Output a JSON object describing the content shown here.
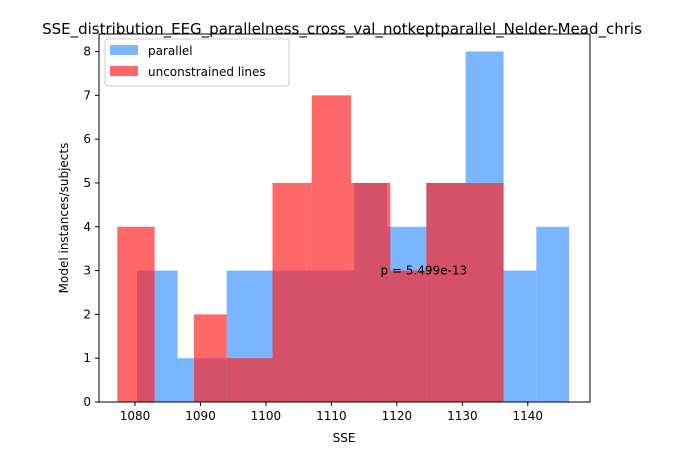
{
  "chart_data": {
    "type": "bar",
    "title": "SSE_distribution_EEG_parallelness_cross_val_notkeptparallel_Nelder-Mead_chris",
    "xlabel": "SSE",
    "ylabel": "Model instances/subjects",
    "xlim": [
      1074.5,
      1149.5
    ],
    "ylim": [
      0,
      8.4
    ],
    "xticks": [
      1080,
      1090,
      1100,
      1110,
      1120,
      1130,
      1140
    ],
    "yticks": [
      0,
      1,
      2,
      3,
      4,
      5,
      6,
      7,
      8
    ],
    "grid": false,
    "legend_position": "top-left",
    "annotation": {
      "text": "p = 5.499e-13",
      "x": 1117.5,
      "y": 3.0
    },
    "series": [
      {
        "name": "parallel",
        "color": "#2a8cff",
        "opacity": 0.63,
        "bins": [
          {
            "x0": 1080.3,
            "x1": 1083.0,
            "y": 3
          },
          {
            "x0": 1083.0,
            "x1": 1086.5,
            "y": 3
          },
          {
            "x0": 1086.5,
            "x1": 1089.0,
            "y": 1
          },
          {
            "x0": 1089.0,
            "x1": 1094.0,
            "y": 1
          },
          {
            "x0": 1094.0,
            "x1": 1096.5,
            "y": 3
          },
          {
            "x0": 1096.5,
            "x1": 1102.0,
            "y": 3
          },
          {
            "x0": 1102.0,
            "x1": 1108.0,
            "y": 3
          },
          {
            "x0": 1108.0,
            "x1": 1113.5,
            "y": 3
          },
          {
            "x0": 1113.5,
            "x1": 1118.5,
            "y": 5
          },
          {
            "x0": 1118.5,
            "x1": 1124.5,
            "y": 4
          },
          {
            "x0": 1124.5,
            "x1": 1130.5,
            "y": 5
          },
          {
            "x0": 1130.5,
            "x1": 1136.3,
            "y": 8
          },
          {
            "x0": 1136.3,
            "x1": 1141.3,
            "y": 3
          },
          {
            "x0": 1141.3,
            "x1": 1146.3,
            "y": 4
          }
        ]
      },
      {
        "name": "unconstrained lines",
        "color": "#ff2020",
        "opacity": 0.68,
        "bins": [
          {
            "x0": 1077.3,
            "x1": 1083.0,
            "y": 4
          },
          {
            "x0": 1083.0,
            "x1": 1089.0,
            "y": 0
          },
          {
            "x0": 1089.0,
            "x1": 1094.0,
            "y": 2
          },
          {
            "x0": 1094.0,
            "x1": 1101.0,
            "y": 1
          },
          {
            "x0": 1101.0,
            "x1": 1107.0,
            "y": 5
          },
          {
            "x0": 1107.0,
            "x1": 1113.0,
            "y": 7
          },
          {
            "x0": 1113.0,
            "x1": 1119.0,
            "y": 5
          },
          {
            "x0": 1119.0,
            "x1": 1124.5,
            "y": 3
          },
          {
            "x0": 1124.5,
            "x1": 1130.5,
            "y": 5
          },
          {
            "x0": 1130.5,
            "x1": 1136.3,
            "y": 5
          }
        ]
      }
    ]
  }
}
